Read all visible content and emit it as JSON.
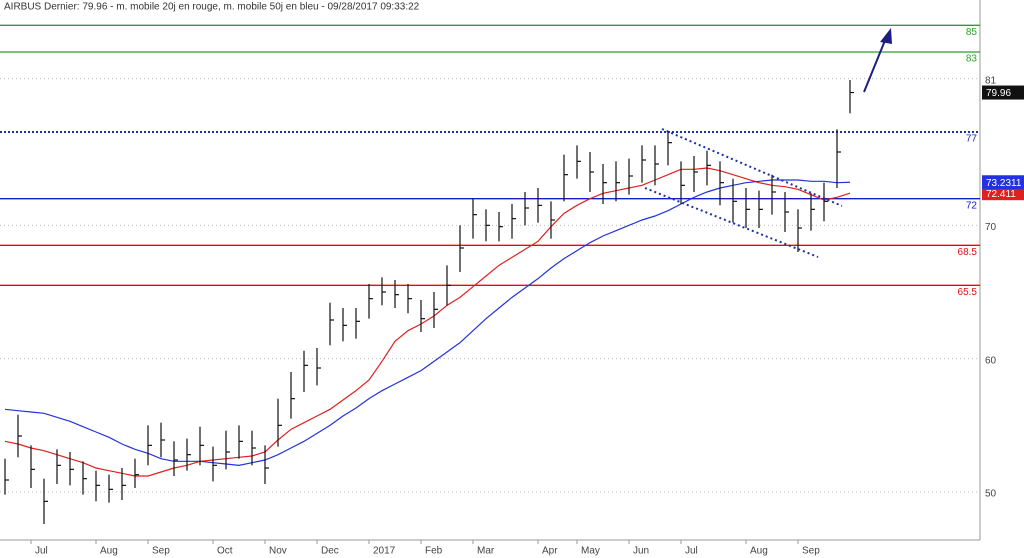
{
  "chart_data": {
    "type": "ohlc",
    "title": "AIRBUS Dernier: 79.96 - m. mobile 20j en rouge, m. mobile 50j en bleu - 09/28/2017 09:33:22",
    "categories": [
      null,
      null,
      "Jul",
      null,
      null,
      null,
      null,
      "Aug",
      null,
      null,
      null,
      "Sep",
      null,
      null,
      null,
      null,
      "Oct",
      null,
      null,
      null,
      "Nov",
      null,
      null,
      null,
      "Dec",
      null,
      null,
      null,
      "2017",
      null,
      null,
      null,
      "Feb",
      null,
      null,
      null,
      "Mar",
      null,
      null,
      null,
      null,
      "Apr",
      null,
      null,
      "May",
      null,
      null,
      null,
      "Jun",
      null,
      null,
      null,
      "Jul",
      null,
      null,
      null,
      null,
      "Aug",
      null,
      null,
      null,
      "Sep",
      null,
      null,
      null,
      null
    ],
    "price": {
      "color": "#111111",
      "high": [
        52.5,
        55.8,
        53.5,
        51.0,
        53.2,
        53.0,
        52.3,
        51.6,
        51.3,
        51.8,
        52.5,
        55.0,
        55.2,
        53.8,
        54.0,
        54.9,
        53.4,
        54.6,
        55.0,
        54.6,
        53.5,
        57.0,
        59.0,
        60.6,
        60.8,
        64.2,
        63.8,
        63.8,
        65.6,
        66.1,
        65.9,
        65.6,
        64.4,
        65.0,
        67.0,
        70.0,
        72.0,
        71.2,
        71.0,
        71.6,
        72.5,
        72.8,
        71.8,
        75.3,
        76.0,
        75.5,
        74.6,
        74.8,
        75.0,
        76.0,
        76.0,
        77.0,
        74.8,
        75.2,
        75.6,
        74.8,
        73.5,
        72.8,
        72.6,
        73.8,
        72.5,
        71.2,
        72.4,
        73.2,
        77.2,
        80.9
      ],
      "low": [
        49.8,
        52.6,
        50.3,
        47.6,
        50.6,
        50.5,
        49.8,
        49.3,
        49.2,
        49.4,
        50.3,
        52.0,
        52.6,
        51.2,
        51.6,
        52.0,
        50.8,
        51.7,
        52.5,
        52.0,
        50.6,
        53.4,
        55.5,
        57.5,
        58.0,
        61.0,
        61.3,
        61.5,
        63.0,
        64.0,
        63.8,
        63.4,
        62.0,
        62.3,
        64.0,
        66.5,
        69.0,
        68.8,
        68.8,
        69.0,
        70.0,
        70.2,
        69.0,
        71.8,
        73.5,
        72.5,
        71.6,
        71.8,
        72.3,
        73.2,
        73.0,
        74.5,
        71.6,
        72.5,
        73.0,
        71.5,
        70.2,
        69.8,
        69.8,
        70.8,
        69.5,
        68.0,
        69.6,
        70.3,
        72.8,
        78.4
      ],
      "close": [
        50.9,
        54.2,
        51.7,
        49.3,
        52.0,
        51.7,
        51.0,
        50.5,
        50.2,
        50.5,
        51.3,
        53.5,
        53.9,
        52.4,
        52.8,
        53.5,
        52.0,
        53.0,
        53.8,
        53.3,
        51.8,
        55.0,
        57.0,
        59.5,
        59.3,
        62.9,
        62.5,
        62.8,
        64.5,
        65.0,
        64.8,
        64.5,
        63.0,
        63.7,
        65.5,
        68.3,
        70.8,
        70.0,
        69.9,
        70.5,
        71.3,
        71.5,
        70.4,
        73.8,
        74.8,
        74.0,
        73.2,
        73.2,
        73.7,
        74.9,
        74.6,
        76.2,
        73.0,
        74.0,
        74.5,
        73.2,
        71.8,
        71.2,
        71.2,
        72.5,
        71.0,
        69.8,
        71.2,
        71.8,
        75.5,
        79.96
      ]
    },
    "series": [
      {
        "color": "#e02020",
        "values": [
          53.8,
          53.6,
          53.3,
          53.1,
          52.8,
          52.5,
          52.2,
          51.8,
          51.6,
          51.4,
          51.2,
          51.2,
          51.5,
          51.8,
          52.0,
          52.3,
          52.4,
          52.5,
          52.6,
          52.7,
          53.0,
          53.9,
          54.7,
          55.2,
          55.7,
          56.2,
          56.9,
          57.6,
          58.4,
          59.8,
          61.3,
          62.1,
          62.6,
          63.2,
          64.0,
          64.6,
          65.4,
          66.2,
          67.0,
          67.6,
          68.2,
          68.8,
          69.9,
          70.9,
          71.5,
          72.0,
          72.4,
          72.6,
          72.8,
          73.0,
          73.4,
          73.8,
          74.2,
          74.2,
          74.3,
          74.1,
          73.8,
          73.5,
          73.2,
          73.0,
          72.9,
          72.7,
          72.3,
          71.9,
          72.1,
          72.411
        ]
      },
      {
        "color": "#2233dd",
        "values": [
          56.2,
          56.1,
          56.0,
          55.9,
          55.6,
          55.3,
          54.9,
          54.5,
          54.1,
          53.6,
          53.2,
          52.9,
          52.5,
          52.3,
          52.3,
          52.3,
          52.2,
          52.1,
          52.0,
          52.2,
          52.4,
          52.8,
          53.3,
          53.8,
          54.4,
          55.0,
          55.7,
          56.3,
          57.0,
          57.6,
          58.1,
          58.6,
          59.1,
          59.8,
          60.5,
          61.2,
          62.1,
          63.0,
          63.8,
          64.6,
          65.3,
          66.0,
          66.8,
          67.5,
          68.1,
          68.7,
          69.2,
          69.6,
          70.0,
          70.4,
          70.7,
          71.1,
          71.6,
          72.1,
          72.5,
          72.8,
          73.0,
          73.2,
          73.3,
          73.4,
          73.4,
          73.4,
          73.3,
          73.3,
          73.2,
          73.2311
        ]
      }
    ],
    "levels": [
      {
        "value": 85,
        "color": "#2e9e2e",
        "style": "solid"
      },
      {
        "value": 83,
        "color": "#2e9e2e",
        "style": "solid"
      },
      {
        "value": 77,
        "color": "#1a2fa8",
        "style": "dotted"
      },
      {
        "value": 72,
        "color": "#1020d0",
        "style": "solid"
      },
      {
        "value": 68.5,
        "color": "#e01010",
        "style": "solid"
      },
      {
        "value": 65.5,
        "color": "#e01010",
        "style": "solid"
      }
    ],
    "ylim": [
      46.4,
      86.9
    ],
    "yticks": [
      50,
      60,
      70,
      81
    ],
    "grid": true
  }
}
